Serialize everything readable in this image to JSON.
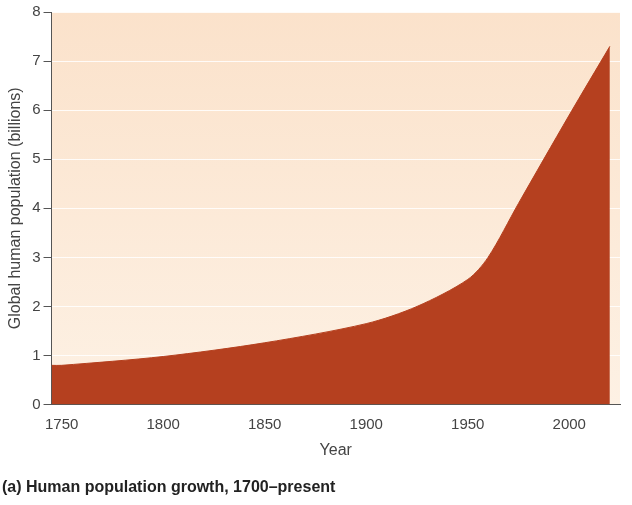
{
  "chart_data": {
    "type": "area",
    "title": "(a) Human population growth, 1700–present",
    "x_label": "Year",
    "y_label": "Global human population (billions)",
    "x": [
      1745,
      1750,
      1800,
      1850,
      1900,
      1925,
      1950,
      1960,
      1975,
      2000,
      2020
    ],
    "values": [
      0.8,
      0.8,
      0.98,
      1.26,
      1.65,
      2.0,
      2.55,
      3.0,
      4.1,
      5.9,
      7.3
    ],
    "color": "#b5401f",
    "xlim": [
      1745,
      2025
    ],
    "xticks": [
      1750,
      1800,
      1850,
      1900,
      1950,
      2000
    ],
    "ylim": [
      0,
      8
    ],
    "yticks": [
      0,
      1,
      2,
      3,
      4,
      5,
      6,
      7,
      8
    ],
    "grid": true
  }
}
